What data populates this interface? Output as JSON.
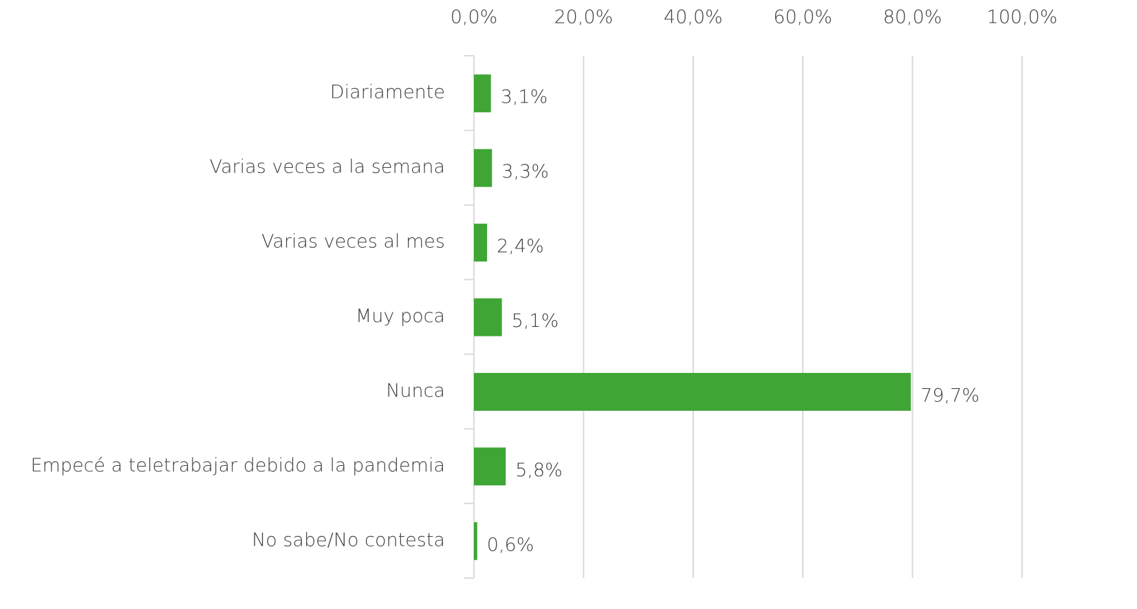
{
  "chart_data": {
    "type": "bar",
    "orientation": "horizontal",
    "categories": [
      "Diariamente",
      "Varias veces a la semana",
      "Varias veces al mes",
      "Muy poca",
      "Nunca",
      "Empecé a teletrabajar debido a la pandemia",
      "No sabe/No contesta"
    ],
    "values": [
      3.1,
      3.3,
      2.4,
      5.1,
      79.7,
      5.8,
      0.6
    ],
    "value_labels": [
      "3,1%",
      "3,3%",
      "2,4%",
      "5,1%",
      "79,7%",
      "5,8%",
      "0,6%"
    ],
    "color": "#3fa535",
    "xlim": [
      0,
      100
    ],
    "xticks": [
      {
        "value": 0,
        "label": "0,0%"
      },
      {
        "value": 20,
        "label": "20,0%"
      },
      {
        "value": 40,
        "label": "40,0%"
      },
      {
        "value": 60,
        "label": "60,0%"
      },
      {
        "value": 80,
        "label": "80,0%"
      },
      {
        "value": 100,
        "label": "100,0%"
      }
    ],
    "grid": true
  }
}
